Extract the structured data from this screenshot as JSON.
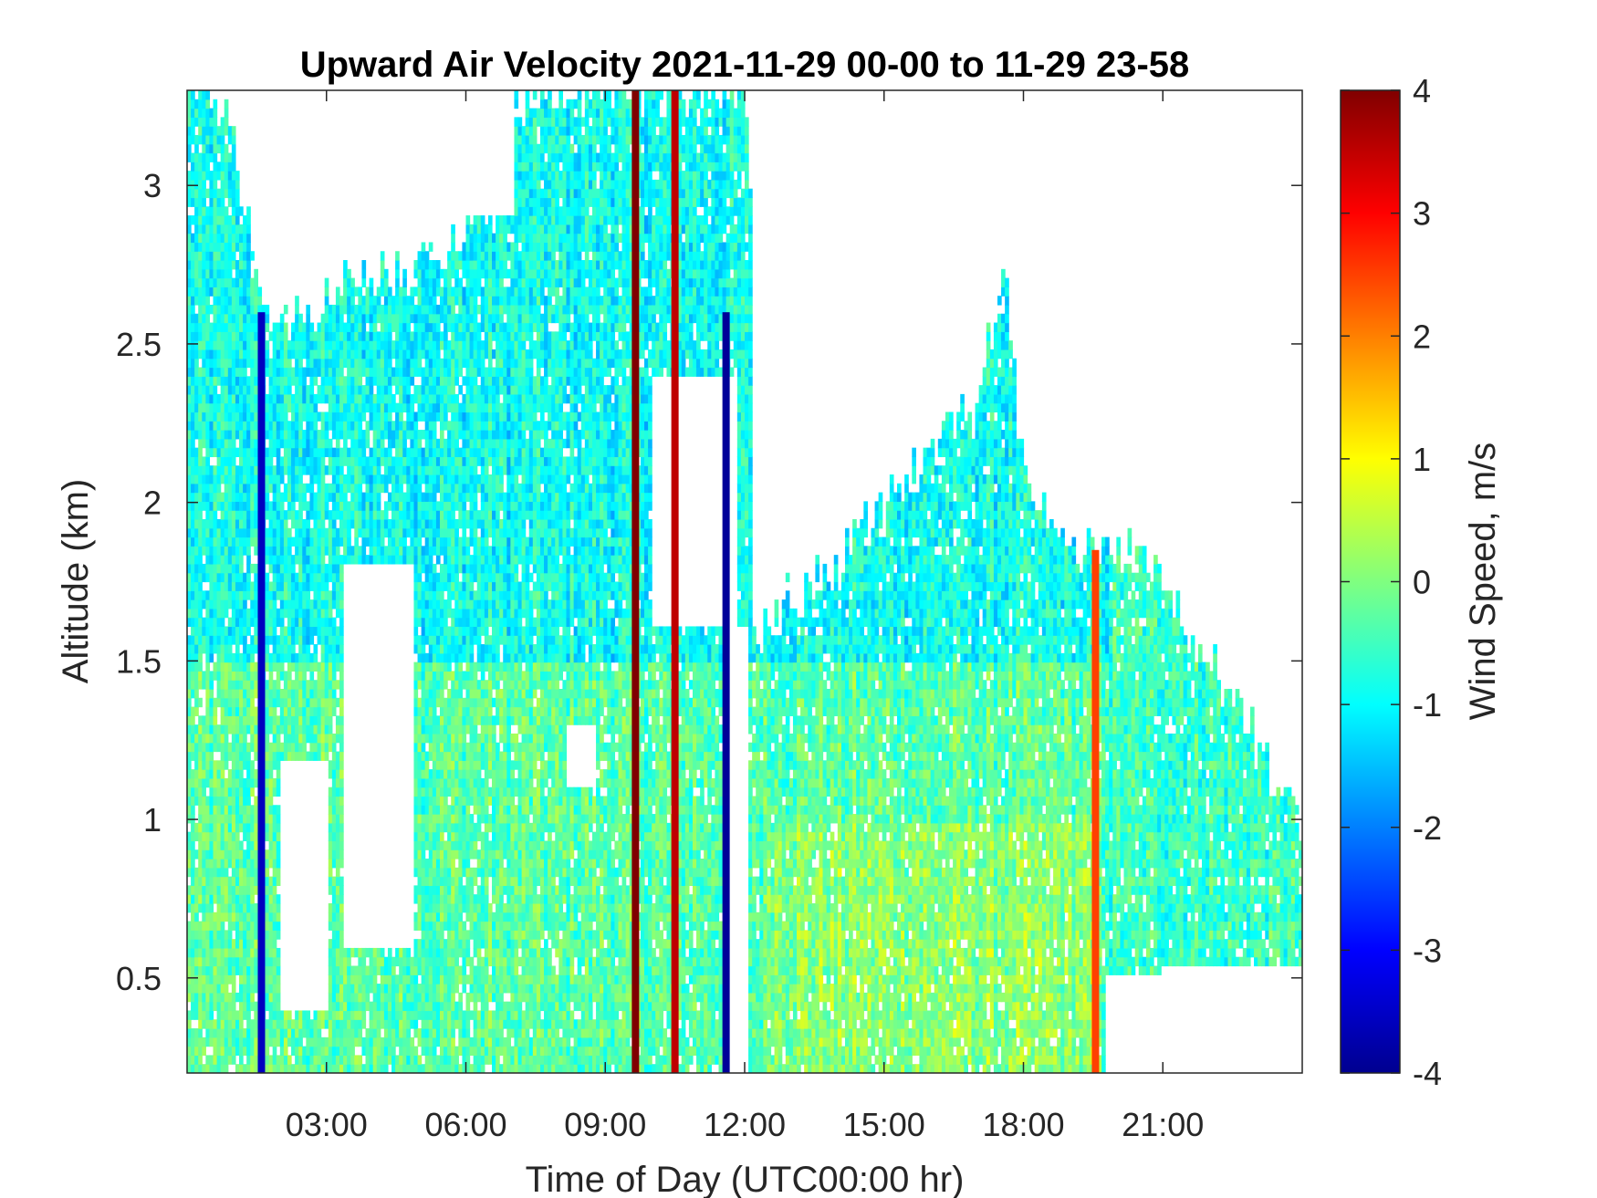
{
  "chart_data": {
    "type": "heatmap",
    "title": "Upward Air Velocity 2021-11-29 00-00 to 11-29 23-58",
    "xlabel": "Time of Day (UTC00:00 hr)",
    "ylabel": "Altitude (km)",
    "colorbar_label": "Wind Speed, m/s",
    "colormap": "jet",
    "x_unit": "hours",
    "xlim": [
      0,
      24
    ],
    "ylim": [
      0.2,
      3.3
    ],
    "clim": [
      -4,
      4
    ],
    "x_ticks": [
      {
        "value": 3,
        "label": "03:00"
      },
      {
        "value": 6,
        "label": "06:00"
      },
      {
        "value": 9,
        "label": "09:00"
      },
      {
        "value": 12,
        "label": "12:00"
      },
      {
        "value": 15,
        "label": "15:00"
      },
      {
        "value": 18,
        "label": "18:00"
      },
      {
        "value": 21,
        "label": "21:00"
      }
    ],
    "y_ticks": [
      {
        "value": 0.5,
        "label": "0.5"
      },
      {
        "value": 1,
        "label": "1"
      },
      {
        "value": 1.5,
        "label": "1.5"
      },
      {
        "value": 2,
        "label": "2"
      },
      {
        "value": 2.5,
        "label": "2.5"
      },
      {
        "value": 3,
        "label": "3"
      }
    ],
    "colorbar_ticks": [
      {
        "value": -4,
        "label": "-4"
      },
      {
        "value": -3,
        "label": "-3"
      },
      {
        "value": -2,
        "label": "-2"
      },
      {
        "value": -1,
        "label": "-1"
      },
      {
        "value": 0,
        "label": "0"
      },
      {
        "value": 1,
        "label": "1"
      },
      {
        "value": 2,
        "label": "2"
      },
      {
        "value": 3,
        "label": "3"
      },
      {
        "value": 4,
        "label": "4"
      }
    ],
    "data_envelope": [
      {
        "x": 0.0,
        "top": 3.3
      },
      {
        "x": 0.6,
        "top": 3.3
      },
      {
        "x": 1.0,
        "top": 3.1
      },
      {
        "x": 1.6,
        "top": 2.7
      },
      {
        "x": 2.0,
        "top": 2.55
      },
      {
        "x": 3.0,
        "top": 2.65
      },
      {
        "x": 4.0,
        "top": 2.7
      },
      {
        "x": 5.0,
        "top": 2.75
      },
      {
        "x": 6.0,
        "top": 2.85
      },
      {
        "x": 7.0,
        "top": 3.3
      },
      {
        "x": 9.0,
        "top": 3.3
      },
      {
        "x": 11.0,
        "top": 3.3
      },
      {
        "x": 12.1,
        "top": 3.3
      },
      {
        "x": 12.2,
        "top": 1.6
      },
      {
        "x": 13.0,
        "top": 1.7
      },
      {
        "x": 14.0,
        "top": 1.8
      },
      {
        "x": 15.0,
        "top": 2.0
      },
      {
        "x": 16.0,
        "top": 2.15
      },
      {
        "x": 17.0,
        "top": 2.35
      },
      {
        "x": 17.6,
        "top": 2.7
      },
      {
        "x": 18.0,
        "top": 2.1
      },
      {
        "x": 19.0,
        "top": 1.85
      },
      {
        "x": 20.0,
        "top": 1.85
      },
      {
        "x": 21.0,
        "top": 1.75
      },
      {
        "x": 22.0,
        "top": 1.5
      },
      {
        "x": 23.0,
        "top": 1.25
      },
      {
        "x": 24.0,
        "top": 1.0
      }
    ],
    "gaps": [
      {
        "x0": 2.0,
        "x1": 3.0,
        "y0": 0.4,
        "y1": 1.2
      },
      {
        "x0": 3.4,
        "x1": 4.9,
        "y0": 0.6,
        "y1": 1.8
      },
      {
        "x0": 8.2,
        "x1": 8.8,
        "y0": 1.1,
        "y1": 1.3
      },
      {
        "x0": 10.0,
        "x1": 11.8,
        "y0": 1.6,
        "y1": 2.4
      },
      {
        "x0": 11.5,
        "x1": 12.1,
        "y0": 0.2,
        "y1": 1.6
      },
      {
        "x0": 19.8,
        "x1": 21.0,
        "y0": 0.2,
        "y1": 0.5
      },
      {
        "x0": 21.0,
        "x1": 24.0,
        "y0": 0.2,
        "y1": 0.55
      },
      {
        "x0": 2.9,
        "x1": 4.2,
        "y0": 3.0,
        "y1": 3.3
      },
      {
        "x0": 4.2,
        "x1": 7.0,
        "y0": 2.9,
        "y1": 3.3
      }
    ],
    "strong_updraft_bands": [
      {
        "x": 9.65,
        "value": 4
      },
      {
        "x": 10.5,
        "value": 3.5
      },
      {
        "x": 19.55,
        "value": 2.5
      }
    ],
    "strong_downdraft_bands": [
      {
        "x": 1.6,
        "value": -3.5
      },
      {
        "x": 11.6,
        "value": -3.8
      }
    ]
  }
}
